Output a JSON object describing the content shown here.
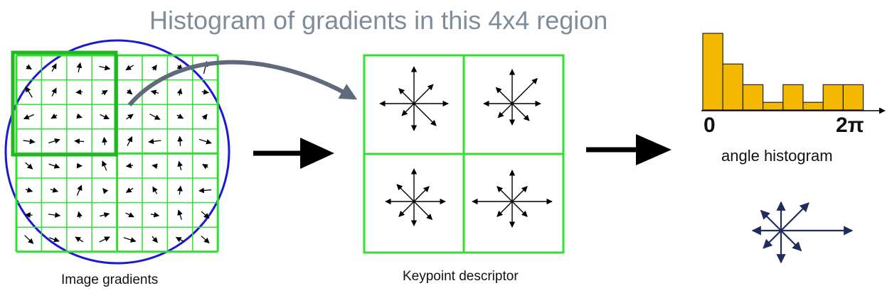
{
  "title": "Histogram of gradients in this 4x4 region",
  "captions": {
    "image_gradients": "Image gradients",
    "keypoint_descriptor": "Keypoint descriptor",
    "angle_histogram": "angle histogram"
  },
  "histogram": {
    "x_start_label": "0",
    "x_end_label": "2π",
    "bins": 8,
    "relative_heights": [
      1.0,
      0.6,
      0.33,
      0.1,
      0.33,
      0.1,
      0.33,
      0.33
    ],
    "bar_color": "#f5b800"
  },
  "colors": {
    "grid": "#33dd33",
    "circle": "#1a1ad0",
    "connector": "#5f6b7a",
    "flow_arrow": "#000000",
    "descriptor_arrow": "#1f2d5c"
  },
  "icons": [
    "curved-arrow-icon",
    "right-arrow-icon",
    "orientation-star-icon"
  ]
}
